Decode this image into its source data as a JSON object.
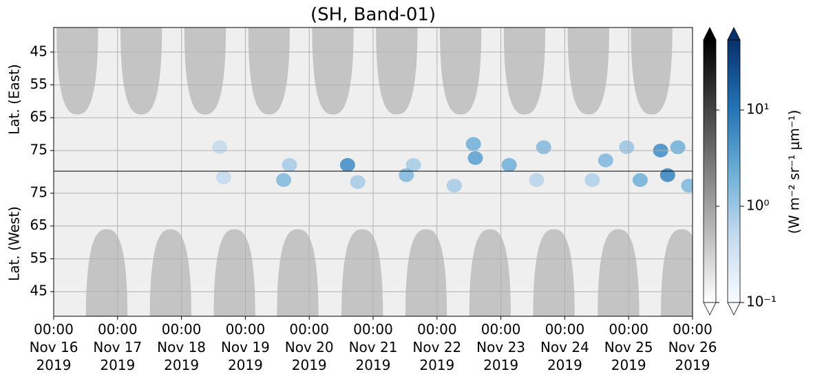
{
  "chart_data": {
    "type": "heatmap",
    "title": "(SH, Band-01)",
    "xlim": [
      0,
      10
    ],
    "xticks": [
      {
        "value": 0,
        "label": "00:00\nNov 16\n2019"
      },
      {
        "value": 1,
        "label": "00:00\nNov 17\n2019"
      },
      {
        "value": 2,
        "label": "00:00\nNov 18\n2019"
      },
      {
        "value": 3,
        "label": "00:00\nNov 19\n2019"
      },
      {
        "value": 4,
        "label": "00:00\nNov 20\n2019"
      },
      {
        "value": 5,
        "label": "00:00\nNov 21\n2019"
      },
      {
        "value": 6,
        "label": "00:00\nNov 22\n2019"
      },
      {
        "value": 7,
        "label": "00:00\nNov 23\n2019"
      },
      {
        "value": 8,
        "label": "00:00\nNov 24\n2019"
      },
      {
        "value": 9,
        "label": "00:00\nNov 25\n2019"
      },
      {
        "value": 10,
        "label": "00:00\nNov 26\n2019"
      }
    ],
    "grid": true,
    "panels": [
      {
        "ylabel": "Lat. (East)",
        "ylim": [
          37.5,
          81.3
        ],
        "inverted": true,
        "yticks": [
          45,
          55,
          65,
          75
        ],
        "night_centers": [
          0.37,
          1.37,
          2.37,
          3.37,
          4.37,
          5.37,
          6.37,
          7.37,
          8.37,
          9.36
        ],
        "night_edge_lat": 64,
        "night_width": 0.65,
        "cells": {
          "x": [
            4.6,
            6.57,
            6.6,
            7.13,
            7.67,
            9.5,
            9.77,
            2.6,
            3.69,
            5.63,
            8.64,
            8.97
          ],
          "y": [
            79.4,
            73,
            77.3,
            79.4,
            74,
            75,
            74,
            74,
            79.4,
            79.4,
            78,
            74
          ],
          "values": [
            5,
            2,
            3,
            2,
            1.5,
            5,
            2,
            0.5,
            0.8,
            0.8,
            1.5,
            1
          ]
        }
      },
      {
        "ylabel": "Lat. (West)",
        "ylim": [
          37.5,
          81.7
        ],
        "inverted": false,
        "yticks": [
          45,
          55,
          65,
          75
        ],
        "night_centers": [
          0.83,
          1.83,
          2.83,
          3.82,
          4.83,
          5.83,
          6.83,
          7.83,
          8.84,
          9.83
        ],
        "night_edge_lat": 64,
        "night_width": 0.65,
        "cells": {
          "x": [
            2.66,
            3.6,
            4.76,
            5.52,
            6.27,
            7.56,
            9.18,
            9.61,
            9.94,
            8.43
          ],
          "y": [
            79.8,
            79,
            78.4,
            80.5,
            77.3,
            79,
            79,
            80.5,
            77.3,
            79
          ],
          "values": [
            0.5,
            1.5,
            0.8,
            1.5,
            0.8,
            0.6,
            2,
            6,
            1.5,
            0.7
          ]
        }
      }
    ],
    "colorbar": {
      "label": "(W m⁻² sr⁻¹ μm⁻¹)",
      "scale": "log",
      "lim": [
        0.1,
        53.6
      ],
      "ticks": [
        {
          "value": 0.1,
          "label": "10⁻¹"
        },
        {
          "value": 1,
          "label": "10⁰"
        },
        {
          "value": 10,
          "label": "10¹"
        }
      ],
      "colors": [
        "#f7fbff",
        "#c6dbef",
        "#6baed6",
        "#2171b5",
        "#08306b"
      ]
    },
    "night_colorbar": {
      "colors": [
        "#ffffff",
        "#000000"
      ]
    }
  }
}
